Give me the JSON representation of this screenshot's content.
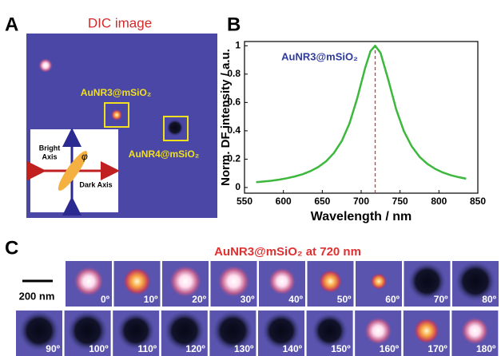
{
  "panel_labels": [
    "A",
    "B",
    "C"
  ],
  "dic": {
    "title": "DIC image",
    "labels": [
      "AuNR3@mSiO₂",
      "AuNR4@mSiO₂"
    ],
    "inset": {
      "bright": [
        "Bright",
        "Axis"
      ],
      "dark": "Dark Axis",
      "angle": "φ"
    }
  },
  "chart_data": {
    "type": "line",
    "annotation": "AuNR3@mSiO₂",
    "xlabel": "Wavelength / nm",
    "ylabel": "Norm. DF intensity / a.u.",
    "x": [
      565,
      575,
      585,
      595,
      605,
      615,
      625,
      635,
      645,
      655,
      665,
      675,
      685,
      695,
      705,
      712,
      718,
      725,
      735,
      745,
      755,
      765,
      775,
      785,
      795,
      805,
      815,
      825,
      835
    ],
    "series": [
      {
        "color": "#3cb83c",
        "values": [
          0.037,
          0.042,
          0.048,
          0.056,
          0.066,
          0.078,
          0.094,
          0.116,
          0.145,
          0.185,
          0.243,
          0.328,
          0.452,
          0.63,
          0.842,
          0.962,
          1.0,
          0.949,
          0.757,
          0.552,
          0.397,
          0.29,
          0.217,
          0.167,
          0.132,
          0.106,
          0.087,
          0.073,
          0.062
        ]
      }
    ],
    "vline": {
      "x": 718,
      "color": "#e03030"
    },
    "xlim": [
      550,
      850
    ],
    "ylim": [
      -0.04,
      1.03
    ],
    "xticks": [
      550,
      600,
      650,
      700,
      750,
      800,
      850
    ],
    "yticks": [
      0,
      0.2,
      0.4,
      0.6,
      0.8,
      1
    ]
  },
  "polarization": {
    "title": "AuNR3@mSiO₂ at 720 nm",
    "scale_bar": "200 nm",
    "angles": [
      "0º",
      "10º",
      "20º",
      "30º",
      "40º",
      "50º",
      "60º",
      "70º",
      "80º",
      "90º",
      "100º",
      "110º",
      "120º",
      "130º",
      "140º",
      "150º",
      "160º",
      "170º",
      "180º"
    ]
  }
}
